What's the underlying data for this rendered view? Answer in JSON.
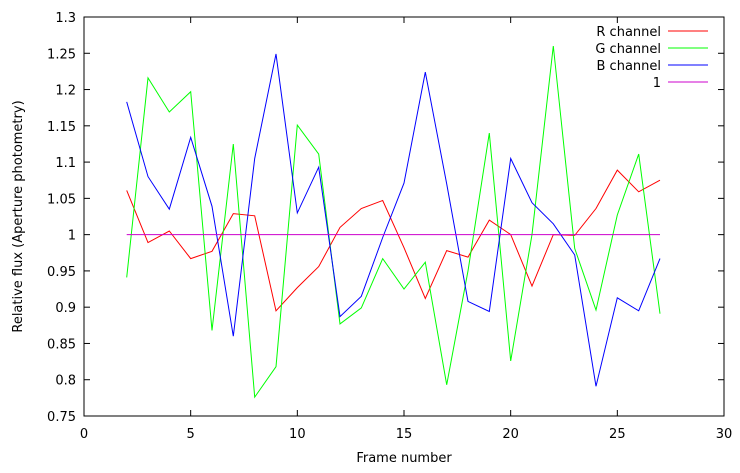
{
  "chart_data": {
    "type": "line",
    "xlabel": "Frame number",
    "ylabel": "Relative flux (Aperture photometry)",
    "xlim": [
      0,
      30
    ],
    "ylim": [
      0.75,
      1.3
    ],
    "xticks": [
      0,
      5,
      10,
      15,
      20,
      25,
      30
    ],
    "yticks": [
      0.75,
      0.8,
      0.85,
      0.9,
      0.95,
      1,
      1.05,
      1.1,
      1.15,
      1.2,
      1.25,
      1.3
    ],
    "xtick_labels": [
      "0",
      "5",
      "10",
      "15",
      "20",
      "25",
      "30"
    ],
    "ytick_labels": [
      "0.75",
      "0.8",
      "0.85",
      "0.9",
      "0.95",
      "1",
      "1.05",
      "1.1",
      "1.15",
      "1.2",
      "1.25",
      "1.3"
    ],
    "grid": false,
    "legend_position": "top-right",
    "x": [
      2,
      3,
      4,
      5,
      6,
      7,
      8,
      9,
      10,
      11,
      12,
      13,
      14,
      15,
      16,
      17,
      18,
      19,
      20,
      21,
      22,
      23,
      24,
      25,
      26,
      27
    ],
    "series": [
      {
        "name": "R channel",
        "color": "#ff0000",
        "values": [
          1.061,
          0.989,
          1.005,
          0.967,
          0.977,
          1.029,
          1.026,
          0.895,
          0.927,
          0.956,
          1.01,
          1.036,
          1.047,
          0.982,
          0.912,
          0.978,
          0.969,
          1.02,
          1.0,
          0.929,
          1.0,
          0.999,
          1.036,
          1.089,
          1.059,
          1.075
        ]
      },
      {
        "name": "G channel",
        "color": "#00ff00",
        "values": [
          0.941,
          1.216,
          1.169,
          1.197,
          0.868,
          1.125,
          0.776,
          0.818,
          1.151,
          1.111,
          0.877,
          0.899,
          0.967,
          0.925,
          0.962,
          0.793,
          0.95,
          1.14,
          0.826,
          1.0,
          1.26,
          0.981,
          0.896,
          1.027,
          1.111,
          0.891
        ]
      },
      {
        "name": "B channel",
        "color": "#0000ff",
        "values": [
          1.183,
          1.08,
          1.035,
          1.134,
          1.039,
          0.86,
          1.105,
          1.249,
          1.03,
          1.093,
          0.887,
          0.915,
          0.996,
          1.071,
          1.224,
          1.07,
          0.908,
          0.894,
          1.105,
          1.044,
          1.015,
          0.972,
          0.791,
          0.913,
          0.895,
          0.967
        ]
      },
      {
        "name": "1",
        "color": "#cc00cc",
        "values": [
          1,
          1,
          1,
          1,
          1,
          1,
          1,
          1,
          1,
          1,
          1,
          1,
          1,
          1,
          1,
          1,
          1,
          1,
          1,
          1,
          1,
          1,
          1,
          1,
          1,
          1
        ]
      }
    ]
  }
}
